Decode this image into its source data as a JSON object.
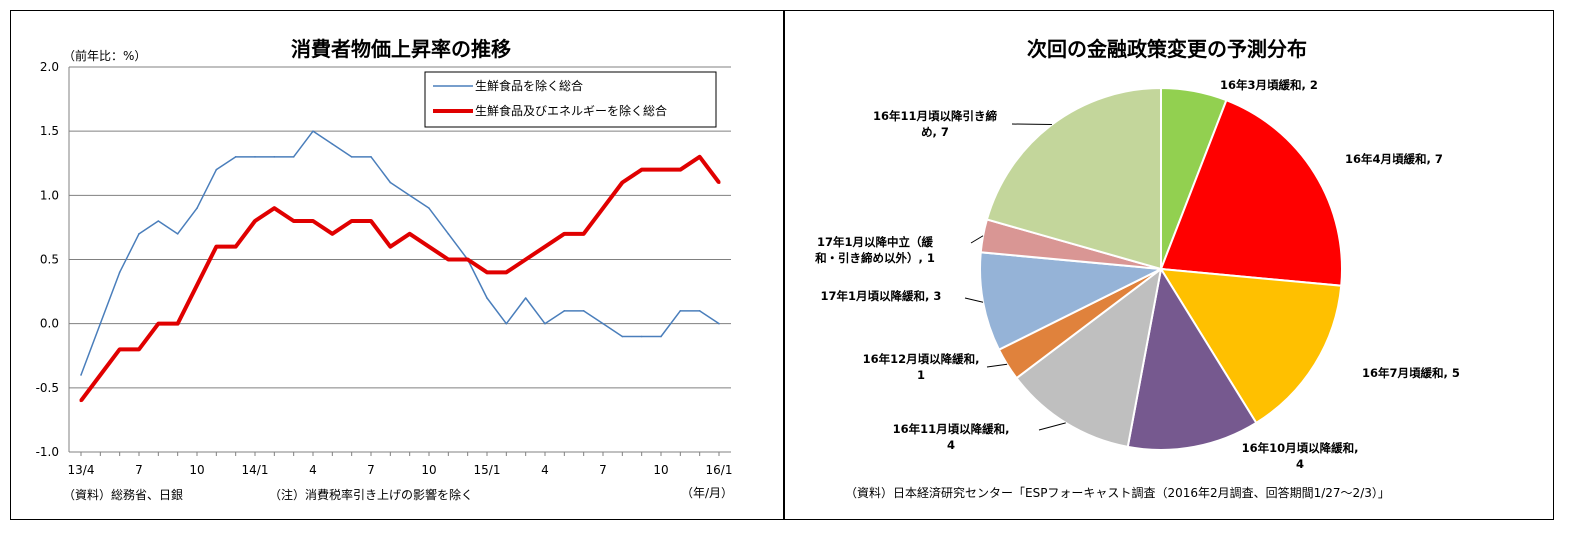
{
  "chart_data": [
    {
      "type": "line",
      "title": "消費者物価上昇率の推移",
      "ylabel": "（前年比：%）",
      "xlabel": "（年/月）",
      "ylim": [
        -1.0,
        2.0
      ],
      "y_ticks": [
        "2.0",
        "1.5",
        "1.0",
        "0.5",
        "0.0",
        "-0.5",
        "-1.0"
      ],
      "x": [
        "13/4",
        "13/5",
        "13/6",
        "13/7",
        "13/8",
        "13/9",
        "13/10",
        "13/11",
        "13/12",
        "14/1",
        "14/2",
        "14/3",
        "14/4",
        "14/5",
        "14/6",
        "14/7",
        "14/8",
        "14/9",
        "14/10",
        "14/11",
        "14/12",
        "15/1",
        "15/2",
        "15/3",
        "15/4",
        "15/5",
        "15/6",
        "15/7",
        "15/8",
        "15/9",
        "15/10",
        "15/11",
        "15/12",
        "16/1"
      ],
      "x_tick_labels": [
        {
          "i": 0,
          "label": "13/4"
        },
        {
          "i": 3,
          "label": "7"
        },
        {
          "i": 6,
          "label": "10"
        },
        {
          "i": 9,
          "label": "14/1"
        },
        {
          "i": 12,
          "label": "4"
        },
        {
          "i": 15,
          "label": "7"
        },
        {
          "i": 18,
          "label": "10"
        },
        {
          "i": 21,
          "label": "15/1"
        },
        {
          "i": 24,
          "label": "4"
        },
        {
          "i": 27,
          "label": "7"
        },
        {
          "i": 30,
          "label": "10"
        },
        {
          "i": 33,
          "label": "16/1"
        }
      ],
      "series": [
        {
          "name": "生鮮食品を除く総合",
          "color": "#4a7ebb",
          "values": [
            -0.4,
            0.0,
            0.4,
            0.7,
            0.8,
            0.7,
            0.9,
            1.2,
            1.3,
            1.3,
            1.3,
            1.3,
            1.5,
            1.4,
            1.3,
            1.3,
            1.1,
            1.0,
            0.9,
            0.7,
            0.5,
            0.2,
            0.0,
            0.2,
            0.0,
            0.1,
            0.1,
            0.0,
            -0.1,
            -0.1,
            -0.1,
            0.1,
            0.1,
            0.0
          ]
        },
        {
          "name": "生鮮食品及びエネルギーを除く総合",
          "color": "#e00000",
          "values": [
            -0.6,
            -0.4,
            -0.2,
            -0.2,
            0.0,
            0.0,
            0.3,
            0.6,
            0.6,
            0.8,
            0.9,
            0.8,
            0.8,
            0.7,
            0.8,
            0.8,
            0.6,
            0.7,
            0.6,
            0.5,
            0.5,
            0.4,
            0.4,
            0.5,
            0.6,
            0.7,
            0.7,
            0.9,
            1.1,
            1.2,
            1.2,
            1.2,
            1.3,
            1.1
          ]
        }
      ],
      "legend": "top-right",
      "grid": true,
      "footnotes": {
        "source": "（資料）総務省、日銀",
        "note": "（注）消費税率引き上げの影響を除く"
      }
    },
    {
      "type": "pie",
      "title": "次回の金融政策変更の予測分布",
      "slices": [
        {
          "label": "16年3月頃緩和, 2",
          "value": 2,
          "color": "#92d050"
        },
        {
          "label": "16年4月頃緩和, 7",
          "value": 7,
          "color": "#ff0000"
        },
        {
          "label": "16年7月頃緩和, 5",
          "value": 5,
          "color": "#ffc000"
        },
        {
          "label": "16年10月頃以降緩和, 4",
          "value": 4,
          "color": "#76598f"
        },
        {
          "label": "16年11月頃以降緩和, 4",
          "value": 4,
          "color": "#bfbfbf"
        },
        {
          "label": "16年12月頃以降緩和, 1",
          "value": 1,
          "color": "#e0823c"
        },
        {
          "label": "17年1月頃以降緩和, 3",
          "value": 3,
          "color": "#95b3d7"
        },
        {
          "label": "17年1月以降中立（緩和・引き締め以外）, 1",
          "value": 1,
          "color": "#d99694"
        },
        {
          "label": "16年11月頃以降引き締め, 7",
          "value": 7,
          "color": "#c3d69b"
        }
      ],
      "label_lines": [
        [
          "16年3月頃緩和, 2"
        ],
        [
          "16年4月頃緩和, 7"
        ],
        [
          "16年7月頃緩和, 5"
        ],
        [
          "16年10月頃以降緩和,",
          "4"
        ],
        [
          "16年11月頃以降緩和,",
          "4"
        ],
        [
          "16年12月頃以降緩和,",
          "1"
        ],
        [
          "17年1月頃以降緩和, 3"
        ],
        [
          "17年1月以降中立（緩",
          "和・引き締め以外）, 1"
        ],
        [
          "16年11月頃以降引き締",
          "め, 7"
        ]
      ],
      "source": "（資料）日本経済研究センター「ESPフォーキャスト調査（2016年2月調査、回答期間1/27～2/3）」"
    }
  ]
}
